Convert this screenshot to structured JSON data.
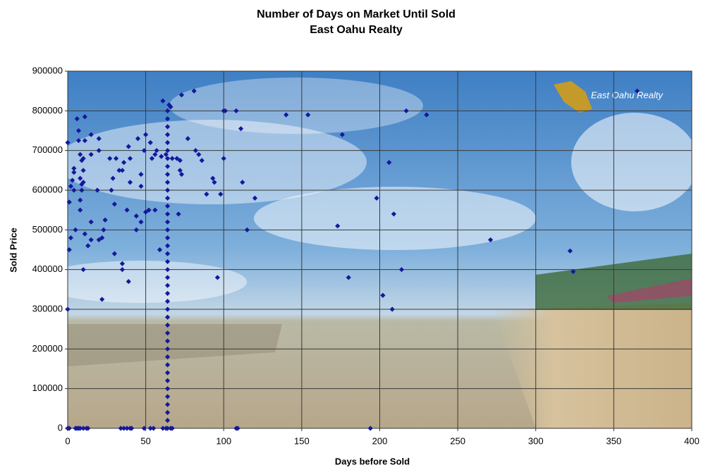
{
  "chart_data": {
    "type": "scatter",
    "title": "Number of Days on Market Until Sold",
    "subtitle": "East Oahu Realty",
    "x_label": "Days before Sold",
    "y_label": "Sold Price",
    "background_logo": "East Oahu Realty",
    "color": "#14189a",
    "grid": true,
    "xlim": [
      0,
      400
    ],
    "xticks": [
      0,
      50,
      100,
      150,
      200,
      250,
      300,
      350,
      400
    ],
    "ylim": [
      0,
      900000
    ],
    "yticks": [
      0,
      100000,
      200000,
      300000,
      400000,
      500000,
      600000,
      700000,
      800000,
      900000
    ],
    "x": [
      0,
      0,
      1,
      1,
      2,
      2,
      3,
      4,
      4,
      4,
      5,
      6,
      7,
      7,
      8,
      8,
      8,
      9,
      8,
      9,
      9,
      10,
      10,
      10,
      10,
      11,
      11,
      11,
      13,
      15,
      15,
      15,
      15,
      19,
      20,
      20,
      20,
      22,
      23,
      22,
      24,
      27,
      28,
      29,
      30,
      30,
      31,
      33,
      35,
      35,
      35,
      36,
      38,
      39,
      39,
      40,
      40,
      44,
      44,
      45,
      47,
      47,
      47,
      49,
      50,
      50,
      52,
      53,
      54,
      56,
      56,
      57,
      59,
      60,
      61,
      63,
      65,
      66,
      67,
      70,
      71,
      72,
      72,
      73,
      73,
      77,
      81,
      82,
      84,
      86,
      89,
      93,
      94,
      96,
      98,
      100,
      101,
      100,
      108,
      111,
      112,
      115,
      120,
      140,
      154,
      173,
      176,
      180,
      198,
      202,
      206,
      208,
      209,
      214,
      217,
      230,
      271,
      322,
      324,
      365,
      0,
      1,
      5,
      6,
      7,
      8,
      10,
      12,
      13,
      34,
      36,
      38,
      40,
      41,
      49,
      53,
      55,
      61,
      63,
      66,
      67,
      108,
      109,
      194,
      64,
      64,
      64,
      64,
      64,
      64,
      64,
      64,
      64,
      64,
      64,
      64,
      64,
      64,
      64,
      64,
      64,
      64,
      64,
      64,
      64,
      64,
      64,
      64,
      64,
      64,
      64,
      64,
      64,
      64,
      64,
      64,
      64,
      64,
      64,
      64,
      64,
      64,
      64,
      64,
      64
    ],
    "y": [
      720000,
      300000,
      450000,
      570000,
      480000,
      610000,
      625000,
      645000,
      655000,
      600000,
      500000,
      780000,
      750000,
      725000,
      575000,
      550000,
      690000,
      675000,
      630000,
      615000,
      600000,
      620000,
      650000,
      680000,
      400000,
      785000,
      490000,
      725000,
      460000,
      740000,
      690000,
      520000,
      475000,
      600000,
      700000,
      730000,
      475000,
      480000,
      500000,
      325000,
      525000,
      680000,
      600000,
      630000,
      565000,
      440000,
      680000,
      650000,
      415000,
      400000,
      650000,
      670000,
      550000,
      710000,
      370000,
      680000,
      620000,
      500000,
      535000,
      730000,
      640000,
      610000,
      520000,
      700000,
      740000,
      545000,
      550000,
      720000,
      680000,
      550000,
      690000,
      700000,
      450000,
      685000,
      825000,
      690000,
      815000,
      810000,
      680000,
      680000,
      540000,
      650000,
      675000,
      640000,
      840000,
      730000,
      850000,
      700000,
      690000,
      675000,
      590000,
      630000,
      620000,
      380000,
      590000,
      680000,
      800000,
      800000,
      800000,
      755000,
      620000,
      500000,
      580000,
      790000,
      790000,
      510000,
      740000,
      380000,
      580000,
      335000,
      670000,
      300000,
      540000,
      400000,
      800000,
      790000,
      475000,
      447000,
      395000,
      850000,
      0,
      0,
      0,
      0,
      0,
      0,
      0,
      0,
      0,
      0,
      0,
      0,
      0,
      0,
      0,
      0,
      0,
      0,
      0,
      0,
      0,
      0,
      0,
      0,
      0,
      20000,
      40000,
      60000,
      80000,
      100000,
      120000,
      140000,
      160000,
      180000,
      200000,
      220000,
      240000,
      260000,
      280000,
      300000,
      320000,
      340000,
      360000,
      380000,
      400000,
      420000,
      440000,
      460000,
      480000,
      500000,
      520000,
      540000,
      560000,
      580000,
      600000,
      620000,
      640000,
      660000,
      680000,
      700000,
      720000,
      740000,
      760000,
      780000,
      800000
    ]
  }
}
